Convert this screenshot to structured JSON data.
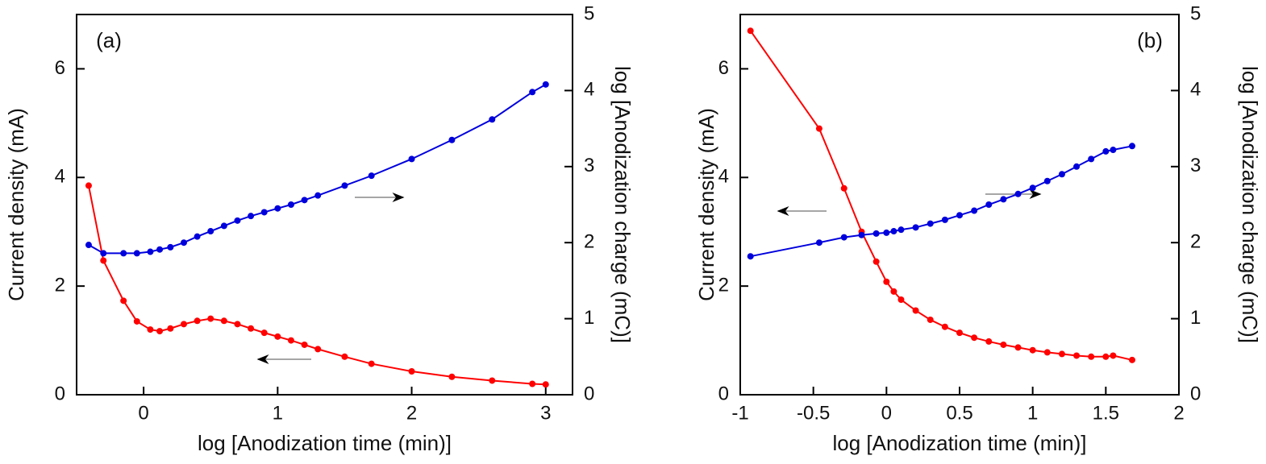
{
  "chart_data": [
    {
      "type": "line",
      "annotation": "(a)",
      "xlabel": "log [Anodization time (min)]",
      "ylabel": "Current density (mA)",
      "y2label": "log [Anodization charge (mC)]",
      "x": [
        -0.41,
        -0.3,
        -0.15,
        -0.05,
        0.05,
        0.12,
        0.2,
        0.3,
        0.4,
        0.5,
        0.6,
        0.7,
        0.8,
        0.9,
        1.0,
        1.1,
        1.2,
        1.3,
        1.5,
        1.7,
        2.0,
        2.3,
        2.6,
        2.9,
        3.0
      ],
      "series": [
        {
          "color": "#ff0000",
          "values": [
            3.85,
            2.47,
            1.73,
            1.35,
            1.2,
            1.17,
            1.22,
            1.3,
            1.36,
            1.4,
            1.36,
            1.3,
            1.22,
            1.14,
            1.07,
            1.0,
            0.92,
            0.84,
            0.7,
            0.57,
            0.43,
            0.33,
            0.26,
            0.2,
            0.19
          ]
        },
        {
          "color": "#0000dd",
          "axis": "y2",
          "values": [
            1.97,
            1.86,
            1.86,
            1.86,
            1.88,
            1.91,
            1.94,
            2.0,
            2.08,
            2.15,
            2.22,
            2.29,
            2.35,
            2.4,
            2.45,
            2.5,
            2.56,
            2.62,
            2.75,
            2.88,
            3.1,
            3.35,
            3.62,
            3.98,
            4.08
          ]
        }
      ],
      "xlim": [
        -0.5,
        3.2
      ],
      "xticks": [
        0,
        1,
        2,
        3
      ],
      "ylim": [
        0,
        7
      ],
      "yticks": [
        0,
        2,
        4,
        6
      ],
      "y2lim": [
        0,
        5
      ],
      "y2ticks": [
        0,
        1,
        2,
        3,
        4,
        5
      ]
    },
    {
      "type": "line",
      "annotation": "(b)",
      "xlabel": "log [Anodization time (min)]",
      "ylabel": "Current density (mA)",
      "y2label": "log [Anodization charge (mC)]",
      "x": [
        -0.93,
        -0.46,
        -0.29,
        -0.17,
        -0.07,
        0,
        0.05,
        0.1,
        0.2,
        0.3,
        0.4,
        0.5,
        0.6,
        0.7,
        0.8,
        0.9,
        1.0,
        1.1,
        1.2,
        1.3,
        1.4,
        1.5,
        1.55,
        1.68
      ],
      "series": [
        {
          "color": "#ff0000",
          "values": [
            6.7,
            4.9,
            3.8,
            3.0,
            2.45,
            2.08,
            1.9,
            1.75,
            1.55,
            1.38,
            1.25,
            1.14,
            1.05,
            0.98,
            0.92,
            0.87,
            0.82,
            0.78,
            0.75,
            0.72,
            0.7,
            0.7,
            0.72,
            0.64
          ]
        },
        {
          "color": "#0000dd",
          "axis": "y2",
          "values": [
            1.82,
            2.0,
            2.07,
            2.1,
            2.12,
            2.13,
            2.15,
            2.17,
            2.2,
            2.25,
            2.3,
            2.36,
            2.42,
            2.5,
            2.57,
            2.64,
            2.72,
            2.81,
            2.9,
            3.0,
            3.1,
            3.2,
            3.22,
            3.27
          ]
        }
      ],
      "xlim": [
        -1,
        2
      ],
      "xticks": [
        -1,
        -0.5,
        0,
        0.5,
        1,
        1.5,
        2
      ],
      "ylim": [
        0,
        7
      ],
      "yticks": [
        0,
        2,
        4,
        6
      ],
      "y2lim": [
        0,
        5
      ],
      "y2ticks": [
        0,
        1,
        2,
        3,
        4,
        5
      ]
    }
  ]
}
